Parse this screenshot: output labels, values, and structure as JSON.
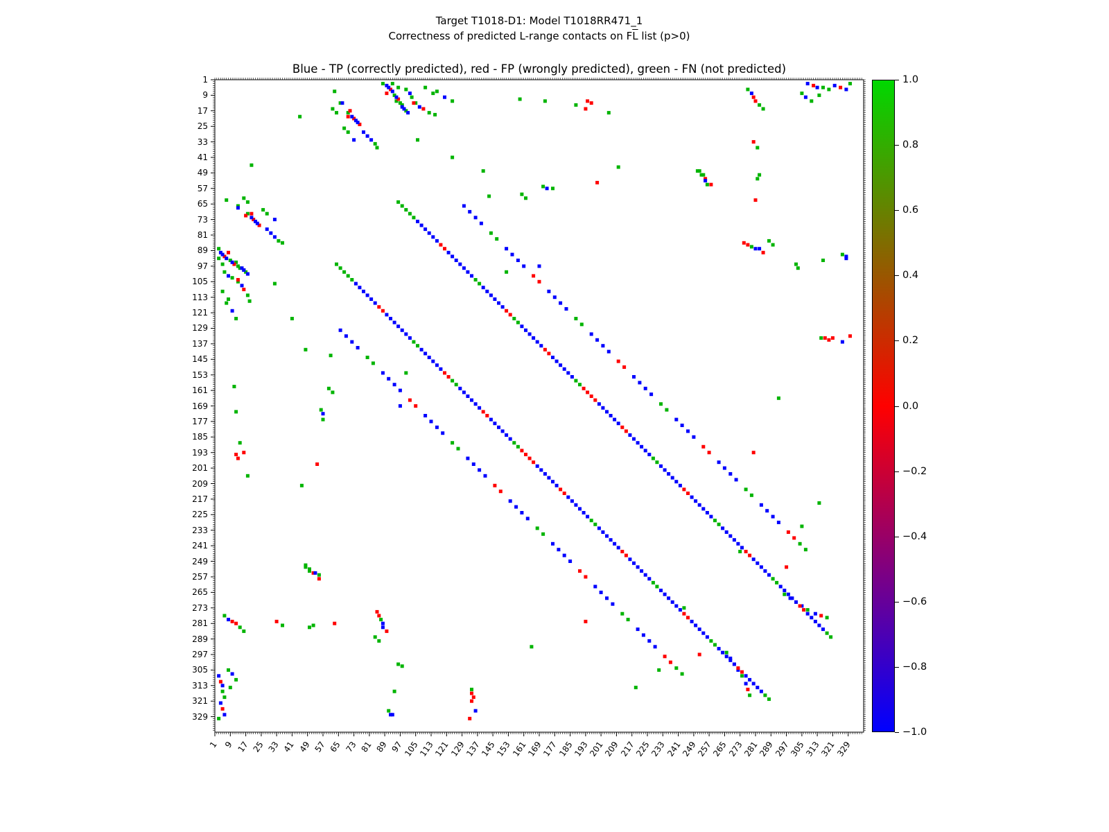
{
  "figure": {
    "title_line1": "Target T1018-D1: Model T1018RR471_1",
    "title_line2_prefix": "Correctness of predicted L-range contacts on F",
    "title_line2_overline": "L",
    "title_line2_suffix": " list (p>0)",
    "axes_title": "Blue - TP (correctly predicted), red - FP (wrongly predicted), green - FN (not predicted)"
  },
  "chart_data": {
    "type": "scatter",
    "title": "Blue - TP (correctly predicted), red - FP (wrongly predicted), green - FN (not predicted)",
    "xlabel": "",
    "ylabel": "",
    "xlim": [
      1,
      336
    ],
    "ylim": [
      1,
      336
    ],
    "y_inverted": true,
    "grid": false,
    "symmetric": true,
    "axis": {
      "tick_labels": [
        "1",
        "9",
        "17",
        "25",
        "33",
        "41",
        "49",
        "57",
        "65",
        "73",
        "81",
        "89",
        "97",
        "105",
        "113",
        "121",
        "129",
        "137",
        "145",
        "153",
        "161",
        "169",
        "177",
        "185",
        "193",
        "201",
        "209",
        "217",
        "225",
        "233",
        "241",
        "249",
        "257",
        "265",
        "273",
        "281",
        "289",
        "297",
        "305",
        "313",
        "321",
        "329"
      ]
    },
    "series": [
      {
        "name": "TP (correctly predicted)",
        "color": "#0000ff"
      },
      {
        "name": "FP (wrongly predicted)",
        "color": "#ff0000"
      },
      {
        "name": "FN (not predicted)",
        "color": "#00b400"
      }
    ],
    "colors": {
      "tp": "#0000ff",
      "fp": "#ff0000",
      "fn": "#00b400"
    },
    "points": {
      "tp": [
        [
          90,
          4
        ],
        [
          91,
          5
        ],
        [
          93,
          7
        ],
        [
          95,
          10
        ],
        [
          98,
          15
        ],
        [
          8,
          102
        ],
        [
          16,
          99
        ],
        [
          18,
          101
        ],
        [
          72,
          20
        ],
        [
          74,
          22
        ],
        [
          75,
          23
        ],
        [
          78,
          28
        ],
        [
          80,
          30
        ],
        [
          82,
          32
        ],
        [
          107,
          15
        ],
        [
          279,
          8
        ],
        [
          308,
          3
        ],
        [
          313,
          5
        ],
        [
          322,
          4
        ],
        [
          328,
          6
        ],
        [
          328,
          93
        ],
        [
          255,
          53
        ],
        [
          88,
          281
        ],
        [
          88,
          283
        ],
        [
          92,
          328
        ],
        [
          10,
          120
        ],
        [
          13,
          67
        ],
        [
          32,
          73
        ],
        [
          57,
          173
        ],
        [
          97,
          169
        ],
        [
          299,
          268
        ],
        [
          305,
          272
        ],
        [
          312,
          276
        ],
        [
          326,
          136
        ],
        [
          307,
          10
        ]
      ],
      "fp": [
        [
          92,
          6
        ],
        [
          96,
          11
        ],
        [
          90,
          8
        ],
        [
          13,
          104
        ],
        [
          76,
          24
        ],
        [
          73,
          21
        ],
        [
          71,
          17
        ],
        [
          109,
          16
        ],
        [
          194,
          12
        ],
        [
          196,
          13
        ],
        [
          280,
          10
        ],
        [
          281,
          12
        ],
        [
          311,
          4
        ],
        [
          325,
          5
        ],
        [
          199,
          54
        ],
        [
          85,
          275
        ],
        [
          86,
          277
        ],
        [
          90,
          285
        ],
        [
          133,
          330
        ],
        [
          134,
          321
        ],
        [
          20,
          70
        ],
        [
          16,
          193
        ],
        [
          52,
          255
        ],
        [
          55,
          258
        ],
        [
          33,
          280
        ],
        [
          280,
          193
        ],
        [
          297,
          252
        ],
        [
          302,
          270
        ],
        [
          315,
          277
        ],
        [
          317,
          134
        ],
        [
          319,
          135
        ],
        [
          281,
          63
        ]
      ],
      "fn": [
        [
          88,
          3
        ],
        [
          93,
          3
        ],
        [
          94,
          9
        ],
        [
          97,
          13
        ],
        [
          96,
          5
        ],
        [
          99,
          16
        ],
        [
          100,
          17
        ],
        [
          14,
          98
        ],
        [
          12,
          95
        ],
        [
          6,
          100
        ],
        [
          10,
          103
        ],
        [
          62,
          16
        ],
        [
          64,
          18
        ],
        [
          68,
          26
        ],
        [
          70,
          28
        ],
        [
          84,
          34
        ],
        [
          85,
          36
        ],
        [
          45,
          20
        ],
        [
          106,
          32
        ],
        [
          124,
          41
        ],
        [
          140,
          48
        ],
        [
          143,
          61
        ],
        [
          172,
          12
        ],
        [
          210,
          46
        ],
        [
          251,
          48
        ],
        [
          253,
          50
        ],
        [
          256,
          55
        ],
        [
          283,
          50
        ],
        [
          282,
          52
        ],
        [
          277,
          6
        ],
        [
          283,
          14
        ],
        [
          285,
          16
        ],
        [
          316,
          5
        ],
        [
          319,
          6
        ],
        [
          330,
          3
        ],
        [
          305,
          8
        ],
        [
          310,
          12
        ],
        [
          314,
          9
        ],
        [
          316,
          94
        ],
        [
          302,
          96
        ],
        [
          303,
          98
        ],
        [
          87,
          279
        ],
        [
          84,
          288
        ],
        [
          86,
          290
        ],
        [
          91,
          326
        ],
        [
          219,
          314
        ],
        [
          7,
          63
        ],
        [
          13,
          66
        ],
        [
          18,
          70
        ],
        [
          5,
          110
        ],
        [
          8,
          114
        ],
        [
          7,
          116
        ],
        [
          12,
          124
        ],
        [
          14,
          188
        ],
        [
          11,
          159
        ],
        [
          18,
          205
        ],
        [
          48,
          252
        ],
        [
          50,
          254
        ],
        [
          56,
          171
        ],
        [
          57,
          176
        ],
        [
          36,
          282
        ],
        [
          105,
          13
        ],
        [
          112,
          18
        ],
        [
          115,
          19
        ],
        [
          165,
          293
        ],
        [
          315,
          134
        ],
        [
          296,
          266
        ],
        [
          308,
          274
        ],
        [
          318,
          278
        ],
        [
          152,
          100
        ],
        [
          231,
          305
        ],
        [
          244,
          273
        ],
        [
          60,
          160
        ],
        [
          62,
          162
        ]
      ]
    },
    "bands": [
      {
        "offset": 32,
        "step": 2,
        "segments": [
          [
            96,
            106,
            "fn"
          ],
          [
            106,
            118,
            "tp"
          ],
          [
            118,
            122,
            "fp"
          ],
          [
            122,
            136,
            "tp"
          ],
          [
            136,
            140,
            "fn"
          ],
          [
            140,
            152,
            "tp"
          ],
          [
            152,
            156,
            "fp"
          ],
          [
            156,
            160,
            "fn"
          ],
          [
            160,
            172,
            "tp"
          ],
          [
            172,
            176,
            "fp"
          ],
          [
            176,
            188,
            "tp"
          ],
          [
            188,
            192,
            "fn"
          ],
          [
            192,
            200,
            "fp"
          ],
          [
            200,
            212,
            "tp"
          ],
          [
            212,
            216,
            "fp"
          ],
          [
            216,
            228,
            "tp"
          ],
          [
            228,
            232,
            "fn"
          ],
          [
            232,
            244,
            "tp"
          ],
          [
            244,
            248,
            "fp"
          ],
          [
            248,
            260,
            "tp"
          ],
          [
            260,
            264,
            "fn"
          ],
          [
            264,
            276,
            "tp"
          ],
          [
            276,
            280,
            "fp"
          ],
          [
            280,
            290,
            "tp"
          ],
          [
            290,
            294,
            "fn"
          ],
          [
            294,
            304,
            "tp"
          ],
          [
            304,
            308,
            "fp"
          ],
          [
            308,
            318,
            "tp"
          ],
          [
            318,
            322,
            "fn"
          ]
        ]
      },
      {
        "offset": 64,
        "step": 3,
        "segments": [
          [
            130,
            140,
            "tp"
          ],
          [
            144,
            148,
            "fn"
          ],
          [
            152,
            162,
            "tp"
          ],
          [
            166,
            170,
            "fp"
          ],
          [
            174,
            184,
            "tp"
          ],
          [
            188,
            192,
            "fn"
          ],
          [
            196,
            206,
            "tp"
          ],
          [
            210,
            214,
            "fp"
          ],
          [
            218,
            228,
            "tp"
          ],
          [
            232,
            236,
            "fn"
          ],
          [
            240,
            250,
            "tp"
          ],
          [
            254,
            258,
            "fp"
          ],
          [
            262,
            272,
            "tp"
          ],
          [
            276,
            280,
            "fn"
          ],
          [
            284,
            294,
            "tp"
          ],
          [
            298,
            302,
            "fp"
          ],
          [
            304,
            310,
            "fn"
          ]
        ]
      }
    ],
    "colorbar": {
      "ticks": [
        "1.0",
        "0.8",
        "0.6",
        "0.4",
        "0.2",
        "0.0",
        "−0.2",
        "−0.4",
        "−0.6",
        "−0.8",
        "−1.0"
      ],
      "gradient_top_to_bottom": [
        "#00d800",
        "#40a200",
        "#806c00",
        "#bf3600",
        "#ff0000",
        "#bf0040",
        "#800080",
        "#4000bf",
        "#0000ff"
      ],
      "range": [
        -1.0,
        1.0
      ]
    }
  }
}
